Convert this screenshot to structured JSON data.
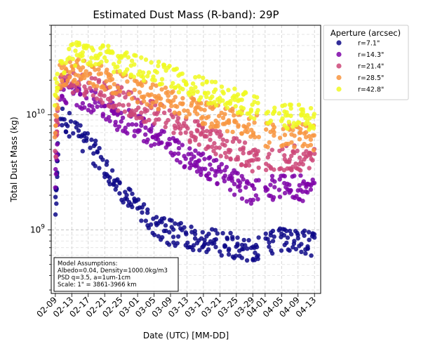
{
  "chart_data": {
    "type": "scatter",
    "title": "Estimated Dust Mass (R-band): 29P",
    "xlabel": "Date (UTC) [MM-DD]",
    "ylabel": "Total Dust Mass (kg)",
    "yscale": "log",
    "ylim": [
      280000000.0,
      60000000000.0
    ],
    "xlim_days": [
      -1.0,
      64.5
    ],
    "grid": true,
    "x_ticks": [
      {
        "label": "02-09",
        "day": 0
      },
      {
        "label": "02-13",
        "day": 4
      },
      {
        "label": "02-17",
        "day": 8
      },
      {
        "label": "02-21",
        "day": 12
      },
      {
        "label": "02-25",
        "day": 16
      },
      {
        "label": "03-01",
        "day": 20
      },
      {
        "label": "03-05",
        "day": 24
      },
      {
        "label": "03-09",
        "day": 28
      },
      {
        "label": "03-13",
        "day": 32
      },
      {
        "label": "03-17",
        "day": 36
      },
      {
        "label": "03-21",
        "day": 40
      },
      {
        "label": "03-25",
        "day": 44
      },
      {
        "label": "03-29",
        "day": 48
      },
      {
        "label": "04-01",
        "day": 51
      },
      {
        "label": "04-05",
        "day": 55
      },
      {
        "label": "04-09",
        "day": 59
      },
      {
        "label": "04-13",
        "day": 63
      }
    ],
    "y_ticks": [
      {
        "label": "10^9",
        "value": 1000000000.0
      },
      {
        "label": "10^10",
        "value": 10000000000.0
      }
    ],
    "legend": {
      "title": "Aperture (arcsec)",
      "position": "outside-right-top"
    },
    "series": [
      {
        "name": "r=7.1\"",
        "color": "#0d0887",
        "trend": [
          [
            0,
            1500000000.0
          ],
          [
            1,
            10000000000.0
          ],
          [
            2,
            9000000000.0
          ],
          [
            4,
            8000000000.0
          ],
          [
            6,
            6500000000.0
          ],
          [
            8,
            5500000000.0
          ],
          [
            10,
            4500000000.0
          ],
          [
            12,
            3500000000.0
          ],
          [
            14,
            2800000000.0
          ],
          [
            16,
            2200000000.0
          ],
          [
            18,
            1800000000.0
          ],
          [
            20,
            1500000000.0
          ],
          [
            22,
            1300000000.0
          ],
          [
            24,
            1150000000.0
          ],
          [
            26,
            1000000000.0
          ],
          [
            28,
            950000000.0
          ],
          [
            30,
            900000000.0
          ],
          [
            34,
            850000000.0
          ],
          [
            38,
            800000000.0
          ],
          [
            42,
            750000000.0
          ],
          [
            46,
            700000000.0
          ],
          [
            49,
            650000000.0
          ],
          [
            52,
            800000000.0
          ],
          [
            56,
            800000000.0
          ],
          [
            60,
            780000000.0
          ],
          [
            63,
            750000000.0
          ]
        ]
      },
      {
        "name": "r=14.3\"",
        "color": "#7e03a8",
        "trend": [
          [
            0,
            3000000000.0
          ],
          [
            1,
            16000000000.0
          ],
          [
            3,
            16000000000.0
          ],
          [
            6,
            15000000000.0
          ],
          [
            9,
            13000000000.0
          ],
          [
            12,
            11000000000.0
          ],
          [
            15,
            9500000000.0
          ],
          [
            18,
            8500000000.0
          ],
          [
            21,
            7500000000.0
          ],
          [
            24,
            6500000000.0
          ],
          [
            27,
            5500000000.0
          ],
          [
            30,
            4800000000.0
          ],
          [
            33,
            4200000000.0
          ],
          [
            36,
            3600000000.0
          ],
          [
            39,
            3200000000.0
          ],
          [
            42,
            2800000000.0
          ],
          [
            45,
            2400000000.0
          ],
          [
            48,
            2100000000.0
          ],
          [
            52,
            2300000000.0
          ],
          [
            56,
            2300000000.0
          ],
          [
            60,
            2300000000.0
          ],
          [
            63,
            2200000000.0
          ]
        ]
      },
      {
        "name": "r=21.4\"",
        "color": "#cc4778",
        "trend": [
          [
            0,
            5000000000.0
          ],
          [
            1,
            19000000000.0
          ],
          [
            4,
            20000000000.0
          ],
          [
            7,
            19000000000.0
          ],
          [
            10,
            17000000000.0
          ],
          [
            13,
            15000000000.0
          ],
          [
            16,
            13500000000.0
          ],
          [
            19,
            12000000000.0
          ],
          [
            22,
            11000000000.0
          ],
          [
            25,
            10000000000.0
          ],
          [
            28,
            9000000000.0
          ],
          [
            31,
            8000000000.0
          ],
          [
            34,
            7000000000.0
          ],
          [
            37,
            6300000000.0
          ],
          [
            40,
            5600000000.0
          ],
          [
            43,
            5000000000.0
          ],
          [
            46,
            4500000000.0
          ],
          [
            49,
            4000000000.0
          ],
          [
            52,
            4000000000.0
          ],
          [
            56,
            4200000000.0
          ],
          [
            60,
            4200000000.0
          ],
          [
            63,
            4000000000.0
          ]
        ]
      },
      {
        "name": "r=28.5\"",
        "color": "#f89540",
        "trend": [
          [
            0,
            8000000000.0
          ],
          [
            1,
            21000000000.0
          ],
          [
            4,
            24000000000.0
          ],
          [
            7,
            24000000000.0
          ],
          [
            10,
            22000000000.0
          ],
          [
            13,
            20000000000.0
          ],
          [
            16,
            18000000000.0
          ],
          [
            19,
            16500000000.0
          ],
          [
            22,
            15000000000.0
          ],
          [
            25,
            14000000000.0
          ],
          [
            28,
            13000000000.0
          ],
          [
            31,
            12000000000.0
          ],
          [
            34,
            11000000000.0
          ],
          [
            37,
            10000000000.0
          ],
          [
            40,
            9500000000.0
          ],
          [
            43,
            9000000000.0
          ],
          [
            46,
            8500000000.0
          ],
          [
            49,
            8000000000.0
          ],
          [
            52,
            6500000000.0
          ],
          [
            56,
            6500000000.0
          ],
          [
            60,
            6500000000.0
          ],
          [
            63,
            6300000000.0
          ]
        ]
      },
      {
        "name": "r=42.8\"",
        "color": "#f0f921",
        "trend": [
          [
            0,
            15000000000.0
          ],
          [
            1,
            27000000000.0
          ],
          [
            4,
            32000000000.0
          ],
          [
            7,
            35000000000.0
          ],
          [
            10,
            33000000000.0
          ],
          [
            13,
            31000000000.0
          ],
          [
            16,
            29000000000.0
          ],
          [
            19,
            27000000000.0
          ],
          [
            22,
            25000000000.0
          ],
          [
            25,
            23000000000.0
          ],
          [
            28,
            21000000000.0
          ],
          [
            31,
            19000000000.0
          ],
          [
            34,
            17500000000.0
          ],
          [
            37,
            16000000000.0
          ],
          [
            40,
            14500000000.0
          ],
          [
            43,
            13500000000.0
          ],
          [
            46,
            12500000000.0
          ],
          [
            49,
            11500000000.0
          ],
          [
            52,
            10000000000.0
          ],
          [
            56,
            9500000000.0
          ],
          [
            60,
            9500000000.0
          ],
          [
            63,
            9000000000.0
          ]
        ]
      }
    ],
    "annotation": {
      "lines": [
        "Model Assumptions:",
        "Albedo=0.04, Density=1000.0kg/m3",
        "PSD q=3.5, a=1um-1cm",
        "Scale: 1\" = 3861-3966 km"
      ]
    }
  }
}
